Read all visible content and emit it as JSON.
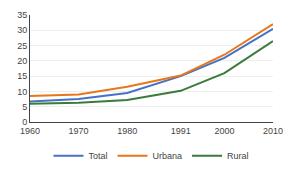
{
  "chart_data": {
    "type": "line",
    "x": [
      1960,
      1970,
      1980,
      1991,
      2000,
      2010
    ],
    "series": [
      {
        "name": "Total",
        "color": "#4472C4",
        "values": [
          6.7,
          7.5,
          9.5,
          15.0,
          21.0,
          30.5
        ]
      },
      {
        "name": "Urbana",
        "color": "#E8761A",
        "values": [
          8.5,
          9.0,
          11.5,
          15.2,
          22.0,
          32.0
        ]
      },
      {
        "name": "Rural",
        "color": "#3A7A3A",
        "values": [
          6.0,
          6.3,
          7.2,
          10.2,
          16.0,
          26.5
        ]
      }
    ],
    "xlim": [
      1960,
      2010
    ],
    "xticks": [
      1960,
      1970,
      1980,
      1991,
      2000,
      2010
    ],
    "ylim": [
      0,
      35
    ],
    "yticks": [
      0,
      5,
      10,
      15,
      20,
      25,
      30,
      35
    ],
    "grid": "y",
    "legend": "bottom"
  }
}
